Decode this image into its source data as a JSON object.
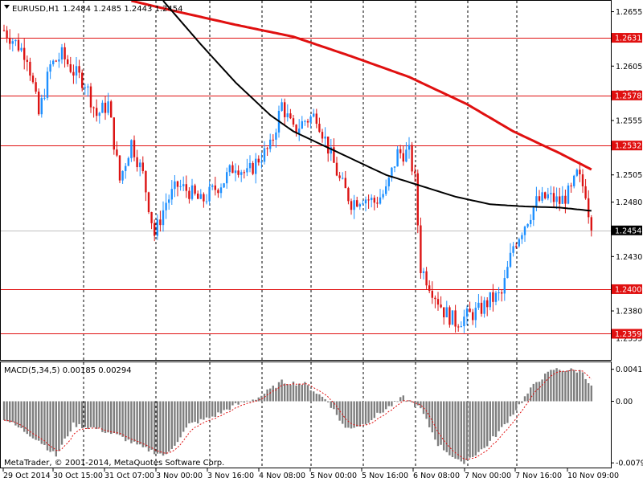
{
  "header": {
    "symbol": "EURUSD,H1",
    "ohlc": "1.2484 1.2485 1.2443 1.2454"
  },
  "macd": {
    "label": "MACD(5,34,5) 0.00185 0.00294",
    "ticks": [
      "0.00411",
      "0.00",
      "-0.0079"
    ]
  },
  "copyright": "MetaTrader, © 2001-2014, MetaQuotes Software Corp.",
  "colors": {
    "bull": "#1E90FF",
    "bear": "#DC1414",
    "ma_fast": "#000000",
    "ma_slow": "#E01010",
    "level_line": "#E01010",
    "macd_hist": "#7F7F7F",
    "macd_signal": "#E01010",
    "current_price": "#000000"
  },
  "chart_data": {
    "type": "candlestick",
    "price_axis": {
      "min": 1.2335,
      "max": 1.2665,
      "ticks": [
        "1.2655",
        "1.2605",
        "1.2580",
        "1.2555",
        "1.2505",
        "1.2480",
        "1.2430",
        "1.2380",
        "1.2355"
      ]
    },
    "x_labels": [
      "29 Oct 2014",
      "30 Oct 15:00",
      "31 Oct 07:00",
      "3 Nov 00:00",
      "3 Nov 16:00",
      "4 Nov 08:00",
      "5 Nov 00:00",
      "5 Nov 16:00",
      "6 Nov 08:00",
      "7 Nov 00:00",
      "7 Nov 16:00",
      "10 Nov 09:00"
    ],
    "levels": [
      {
        "value": 1.2631,
        "label": "1.2631"
      },
      {
        "value": 1.2578,
        "label": "1.2578"
      },
      {
        "value": 1.2532,
        "label": "1.2532"
      },
      {
        "value": 1.24,
        "label": "1.2400"
      },
      {
        "value": 1.2359,
        "label": "1.2359"
      }
    ],
    "current_price": {
      "value": 1.2454,
      "label": "1.2454"
    },
    "path_waypoints": [
      [
        0,
        1.2638
      ],
      [
        8,
        1.2615
      ],
      [
        12,
        1.256
      ],
      [
        16,
        1.2605
      ],
      [
        20,
        1.2615
      ],
      [
        24,
        1.26
      ],
      [
        28,
        1.259
      ],
      [
        32,
        1.256
      ],
      [
        36,
        1.257
      ],
      [
        40,
        1.25
      ],
      [
        44,
        1.2535
      ],
      [
        48,
        1.2505
      ],
      [
        52,
        1.245
      ],
      [
        56,
        1.248
      ],
      [
        60,
        1.2495
      ],
      [
        64,
        1.249
      ],
      [
        68,
        1.248
      ],
      [
        72,
        1.249
      ],
      [
        76,
        1.25
      ],
      [
        80,
        1.2515
      ],
      [
        84,
        1.2505
      ],
      [
        88,
        1.252
      ],
      [
        92,
        1.253
      ],
      [
        96,
        1.257
      ],
      [
        100,
        1.2545
      ],
      [
        104,
        1.2555
      ],
      [
        108,
        1.256
      ],
      [
        112,
        1.253
      ],
      [
        116,
        1.25
      ],
      [
        120,
        1.248
      ],
      [
        124,
        1.2485
      ],
      [
        128,
        1.248
      ],
      [
        132,
        1.249
      ],
      [
        136,
        1.2525
      ],
      [
        140,
        1.2525
      ],
      [
        142,
        1.25
      ],
      [
        144,
        1.242
      ],
      [
        148,
        1.24
      ],
      [
        152,
        1.238
      ],
      [
        156,
        1.237
      ],
      [
        160,
        1.2375
      ],
      [
        164,
        1.238
      ],
      [
        168,
        1.239
      ],
      [
        172,
        1.2395
      ],
      [
        176,
        1.244
      ],
      [
        180,
        1.246
      ],
      [
        184,
        1.248
      ],
      [
        188,
        1.2485
      ],
      [
        192,
        1.248
      ],
      [
        196,
        1.249
      ],
      [
        198,
        1.2505
      ],
      [
        201,
        1.249
      ],
      [
        203,
        1.2454
      ]
    ],
    "ma_fast": [
      [
        55,
        1.2665
      ],
      [
        68,
        1.2625
      ],
      [
        80,
        1.259
      ],
      [
        92,
        1.256
      ],
      [
        100,
        1.2545
      ],
      [
        108,
        1.2535
      ],
      [
        116,
        1.2525
      ],
      [
        124,
        1.2515
      ],
      [
        132,
        1.2505
      ],
      [
        144,
        1.2495
      ],
      [
        156,
        1.2485
      ],
      [
        168,
        1.2478
      ],
      [
        180,
        1.2476
      ],
      [
        192,
        1.2475
      ],
      [
        203,
        1.2472
      ]
    ],
    "ma_slow": [
      [
        44,
        1.2665
      ],
      [
        60,
        1.2655
      ],
      [
        80,
        1.2643
      ],
      [
        100,
        1.2632
      ],
      [
        120,
        1.2614
      ],
      [
        140,
        1.2595
      ],
      [
        160,
        1.257
      ],
      [
        176,
        1.2545
      ],
      [
        192,
        1.2525
      ],
      [
        203,
        1.251
      ]
    ],
    "macd_hist_waypoints": [
      [
        0,
        -0.0022
      ],
      [
        12,
        -0.005
      ],
      [
        18,
        -0.007
      ],
      [
        24,
        -0.003
      ],
      [
        32,
        -0.0035
      ],
      [
        40,
        -0.0045
      ],
      [
        48,
        -0.006
      ],
      [
        56,
        -0.007
      ],
      [
        64,
        -0.003
      ],
      [
        72,
        -0.002
      ],
      [
        80,
        -0.0005
      ],
      [
        88,
        0.0005
      ],
      [
        96,
        0.0025
      ],
      [
        104,
        0.0022
      ],
      [
        112,
        0.0
      ],
      [
        118,
        -0.0035
      ],
      [
        124,
        -0.003
      ],
      [
        132,
        -0.001
      ],
      [
        138,
        0.0005
      ],
      [
        144,
        -0.001
      ],
      [
        150,
        -0.0055
      ],
      [
        158,
        -0.008
      ],
      [
        166,
        -0.006
      ],
      [
        172,
        -0.0035
      ],
      [
        178,
        -0.0005
      ],
      [
        184,
        0.0025
      ],
      [
        190,
        0.0041
      ],
      [
        196,
        0.004
      ],
      [
        200,
        0.0038
      ],
      [
        203,
        0.0018
      ]
    ]
  }
}
